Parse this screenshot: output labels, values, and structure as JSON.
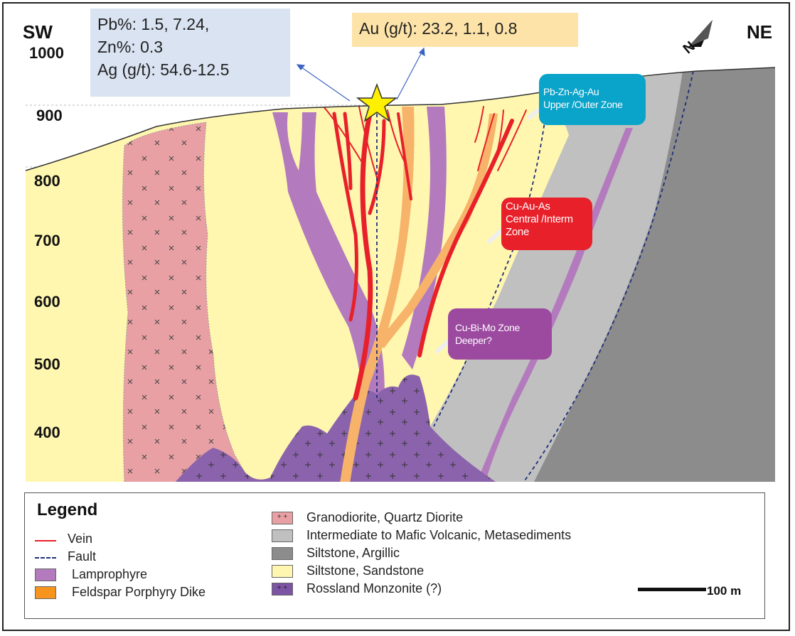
{
  "direction": {
    "left": "SW",
    "right": "NE"
  },
  "elevations": [
    "1000",
    "900",
    "800",
    "700",
    "600",
    "500",
    "400"
  ],
  "assays": {
    "pb_zn_ag": [
      "Pb%: 1.5, 7.24,",
      "Zn%: 0.3",
      "Ag (g/t): 54.6-12.5"
    ],
    "au": "Au (g/t): 23.2, 1.1, 0.8"
  },
  "zones": {
    "upper": [
      "Pb-Zn-Ag-Au",
      "Upper /Outer Zone"
    ],
    "central": [
      "Cu-Au-As",
      "Central /Interm",
      "Zone"
    ],
    "deep": [
      "Cu-Bi-Mo Zone",
      "Deeper?"
    ]
  },
  "legend": {
    "title": "Legend",
    "left": [
      {
        "label": "Vein",
        "symbol": "line",
        "color": "#e8202a"
      },
      {
        "label": "Fault",
        "symbol": "dash",
        "color": "#1f2f7a"
      },
      {
        "label": "Lamprophyre",
        "symbol": "box",
        "color": "#b37bbd"
      },
      {
        "label": "Feldspar Porphyry Dike",
        "symbol": "box",
        "color": "#f7941d"
      }
    ],
    "right": [
      {
        "label": "Granodiorite, Quartz Diorite",
        "symbol": "box-cross",
        "color": "#e8a0a4"
      },
      {
        "label": "Intermediate to Mafic Volcanic, Metasediments",
        "symbol": "box",
        "color": "#c0c0c0"
      },
      {
        "label": "Siltstone, Argillic",
        "symbol": "box",
        "color": "#8c8c8c"
      },
      {
        "label": "Siltstone, Sandstone",
        "symbol": "box",
        "color": "#fff7b0"
      },
      {
        "label": "Rossland Monzonite (?)",
        "symbol": "box-cross",
        "color": "#7b55a3"
      }
    ]
  },
  "scale": "100 m",
  "colors": {
    "sandstone": "#fff7b0",
    "granodiorite": "#e8a0a4",
    "lamprophyre": "#b37bbd",
    "porphyry": "#f7b36a",
    "monzonite": "#8b63ad",
    "volcanic": "#c0c0c0",
    "argillic": "#8c8c8c",
    "vein": "#e8202a",
    "fault": "#1f2f7a",
    "star": "#ffef00"
  }
}
